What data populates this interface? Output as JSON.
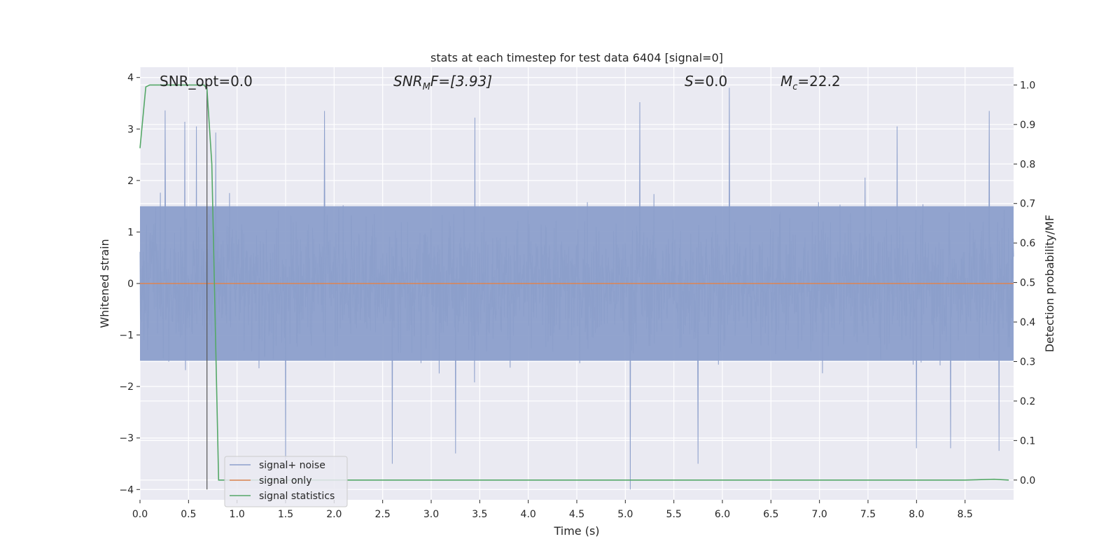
{
  "chart_data": {
    "type": "line",
    "title": "stats at each timestep for test data 6404 [signal=0]",
    "xlabel": "Time (s)",
    "ylabel": "Whitened strain",
    "ylabel_right": "Detection probability/MF",
    "xlim": [
      0.0,
      9.0
    ],
    "ylim": [
      -4.2,
      4.2
    ],
    "ylim_right": [
      -0.05,
      1.045
    ],
    "x_ticks": [
      0.0,
      0.5,
      1.0,
      1.5,
      2.0,
      2.5,
      3.0,
      3.5,
      4.0,
      4.5,
      5.0,
      5.5,
      6.0,
      6.5,
      7.0,
      7.5,
      8.0,
      8.5
    ],
    "x_tick_labels": [
      "0.0",
      "0.5",
      "1.0",
      "1.5",
      "2.0",
      "2.5",
      "3.0",
      "3.5",
      "4.0",
      "4.5",
      "5.0",
      "5.5",
      "6.0",
      "6.5",
      "7.0",
      "7.5",
      "8.0",
      "8.5"
    ],
    "y_ticks": [
      4,
      3,
      2,
      1,
      0,
      -1,
      -2,
      -3,
      -4
    ],
    "y_tick_labels": [
      "4",
      "3",
      "2",
      "1",
      "0",
      "−1",
      "−2",
      "−3",
      "−4"
    ],
    "y_right_ticks": [
      1.0,
      0.9,
      0.8,
      0.7,
      0.6,
      0.5,
      0.4,
      0.3,
      0.2,
      0.1,
      0.0
    ],
    "y_right_tick_labels": [
      "1.0",
      "0.9",
      "0.8",
      "0.7",
      "0.6",
      "0.5",
      "0.4",
      "0.3",
      "0.2",
      "0.1",
      "0.0"
    ],
    "grid": true,
    "legend_position": "lower-left",
    "annotations": {
      "snr_opt": "SNR_opt=0.0",
      "snr_mf_main": "SNR",
      "snr_mf_sub": "M",
      "snr_mf_rest": "F=[3.93]",
      "s_main": "S",
      "s_rest": "=0.0",
      "mc_main": "M",
      "mc_sub": "c",
      "mc_rest": "=22.2"
    },
    "vertical_marker_x": 0.69,
    "series": [
      {
        "name": "signal+ noise",
        "color": "#8c9fcb",
        "axis": "left",
        "description_values": "dense whitened noise, approx. range -4 to 3.8",
        "spikes": [
          {
            "x": 0.26,
            "y": 3.36
          },
          {
            "x": 0.46,
            "y": 3.14
          },
          {
            "x": 0.58,
            "y": 3.05
          },
          {
            "x": 0.78,
            "y": 2.93
          },
          {
            "x": 1.5,
            "y": -3.6
          },
          {
            "x": 1.9,
            "y": 3.35
          },
          {
            "x": 2.6,
            "y": -3.5
          },
          {
            "x": 3.25,
            "y": -3.3
          },
          {
            "x": 3.45,
            "y": 3.22
          },
          {
            "x": 5.05,
            "y": -4.0
          },
          {
            "x": 5.15,
            "y": 3.52
          },
          {
            "x": 5.75,
            "y": -3.5
          },
          {
            "x": 6.07,
            "y": 3.8
          },
          {
            "x": 7.8,
            "y": 3.05
          },
          {
            "x": 8.0,
            "y": -3.2
          },
          {
            "x": 8.35,
            "y": -3.2
          },
          {
            "x": 8.75,
            "y": 3.35
          },
          {
            "x": 8.85,
            "y": -3.25
          }
        ]
      },
      {
        "name": "signal only",
        "color": "#dd8452",
        "axis": "left",
        "x": [
          0.0,
          9.0
        ],
        "y": [
          0.0,
          0.0
        ]
      },
      {
        "name": "signal statistics",
        "color": "#55a868",
        "axis": "right",
        "x": [
          0.0,
          0.06,
          0.1,
          0.15,
          0.5,
          0.66,
          0.69,
          0.74,
          0.81,
          8.5,
          8.8,
          8.95
        ],
        "y": [
          0.84,
          0.995,
          1.0,
          1.0,
          1.0,
          1.0,
          0.99,
          0.8,
          0.0,
          0.0,
          0.002,
          0.0
        ]
      }
    ]
  }
}
